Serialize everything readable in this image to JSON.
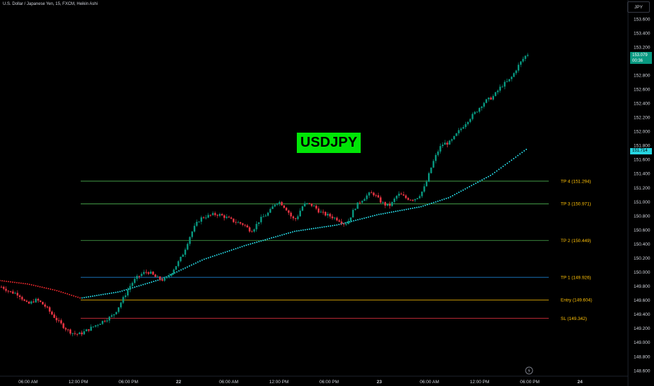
{
  "chart_title": "U.S. Dollar / Japanese Yen, 15, FXCM, Heikin Ashi",
  "symbol_label": "USDJPY",
  "currency": "JPY",
  "last_price": {
    "price": "153.079",
    "countdown": "00:36"
  },
  "ma_label": "151.714",
  "colors": {
    "background": "#000000",
    "up": "#089981",
    "down": "#f23645",
    "ma_up": "#26d4e0",
    "ma_down": "#e0262a",
    "level_green": "#4caf50",
    "level_blue": "#2196f3",
    "level_orange": "#ffc107",
    "level_red": "#f23645",
    "symbol_box": "#00e606"
  },
  "chart_data": {
    "type": "candlestick",
    "title": "U.S. Dollar / Japanese Yen, 15, FXCM, Heikin Ashi",
    "ylim": [
      148.6,
      153.6
    ],
    "y_ticks": [
      "153.600",
      "153.400",
      "153.200",
      "153.000",
      "152.800",
      "152.600",
      "152.400",
      "152.200",
      "152.000",
      "151.800",
      "151.600",
      "151.400",
      "151.200",
      "151.000",
      "150.800",
      "150.600",
      "150.400",
      "150.200",
      "150.000",
      "149.800",
      "149.600",
      "149.400",
      "149.200",
      "149.000",
      "148.800",
      "148.600"
    ],
    "x_ticks": [
      {
        "label": "06:00 AM",
        "bold": false
      },
      {
        "label": "12:00 PM",
        "bold": false
      },
      {
        "label": "06:00 PM",
        "bold": false
      },
      {
        "label": "22",
        "bold": true
      },
      {
        "label": "06:00 AM",
        "bold": false
      },
      {
        "label": "12:00 PM",
        "bold": false
      },
      {
        "label": "06:00 PM",
        "bold": false
      },
      {
        "label": "23",
        "bold": true
      },
      {
        "label": "06:00 AM",
        "bold": false
      },
      {
        "label": "12:00 PM",
        "bold": false
      },
      {
        "label": "06:00 PM",
        "bold": false
      },
      {
        "label": "24",
        "bold": true
      }
    ],
    "levels": [
      {
        "label": "TP 4 (151.294)",
        "value": 151.294,
        "color": "#4caf50",
        "text_color": "#ffc107"
      },
      {
        "label": "TP 3 (150.971)",
        "value": 150.971,
        "color": "#4caf50",
        "text_color": "#ffc107"
      },
      {
        "label": "TP 2 (150.449)",
        "value": 150.449,
        "color": "#4caf50",
        "text_color": "#ffc107"
      },
      {
        "label": "TP 1 (149.926)",
        "value": 149.926,
        "color": "#2196f3",
        "text_color": "#ffc107"
      },
      {
        "label": "Entry (149.604)",
        "value": 149.604,
        "color": "#ffc107",
        "text_color": "#ffc107"
      },
      {
        "label": "SL (149.342)",
        "value": 149.342,
        "color": "#f23645",
        "text_color": "#ffc107"
      }
    ],
    "price_path": [
      149.79,
      149.72,
      149.68,
      149.55,
      149.6,
      149.52,
      149.38,
      149.25,
      149.15,
      149.12,
      149.18,
      149.25,
      149.32,
      149.4,
      149.6,
      149.82,
      149.95,
      150.0,
      149.92,
      149.9,
      150.05,
      150.25,
      150.55,
      150.75,
      150.8,
      150.82,
      150.78,
      150.72,
      150.68,
      150.6,
      150.75,
      150.85,
      151.0,
      150.9,
      150.75,
      150.95,
      150.95,
      150.85,
      150.8,
      150.75,
      150.7,
      150.92,
      151.05,
      151.12,
      151.0,
      150.95,
      151.1,
      151.05,
      151.05,
      151.2,
      151.55,
      151.8,
      151.85,
      152.0,
      152.15,
      152.28,
      152.42,
      152.5,
      152.65,
      152.75,
      152.95,
      153.1
    ]
  }
}
